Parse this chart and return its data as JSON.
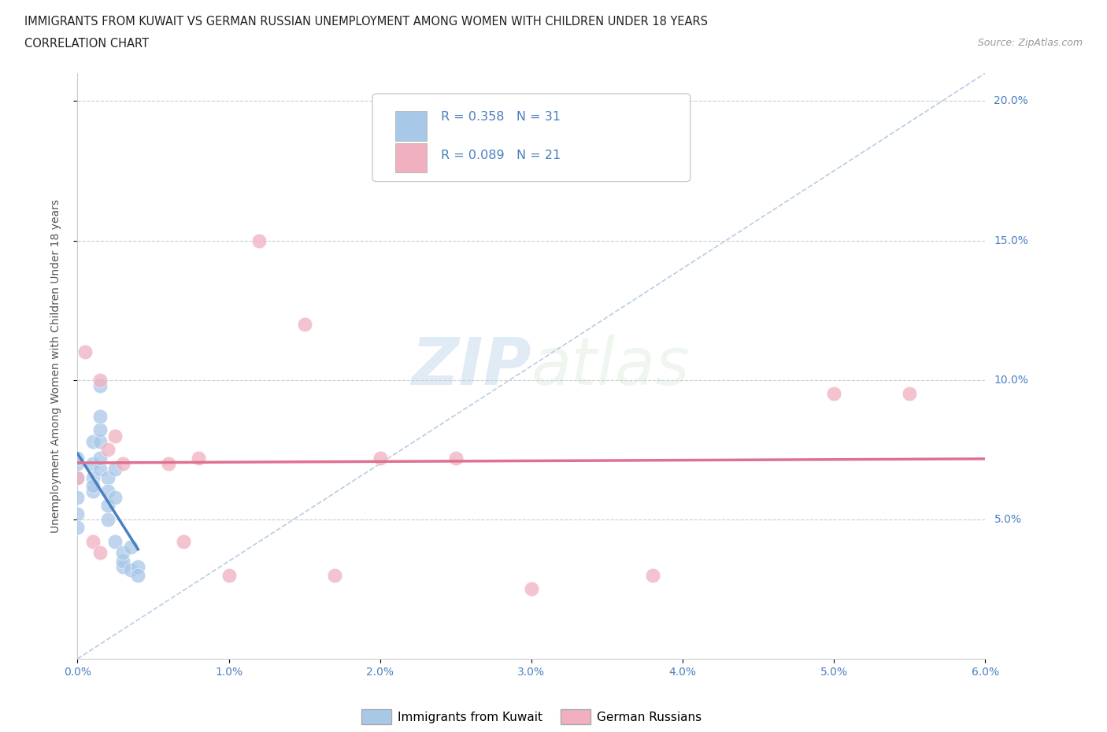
{
  "title_line1": "IMMIGRANTS FROM KUWAIT VS GERMAN RUSSIAN UNEMPLOYMENT AMONG WOMEN WITH CHILDREN UNDER 18 YEARS",
  "title_line2": "CORRELATION CHART",
  "source": "Source: ZipAtlas.com",
  "ylabel_label": "Unemployment Among Women with Children Under 18 years",
  "xlim": [
    0.0,
    0.06
  ],
  "ylim": [
    0.0,
    0.21
  ],
  "xticks": [
    0.0,
    0.01,
    0.02,
    0.03,
    0.04,
    0.05,
    0.06
  ],
  "yticks": [
    0.05,
    0.1,
    0.15,
    0.2
  ],
  "ytick_labels": [
    "5.0%",
    "10.0%",
    "15.0%",
    "20.0%"
  ],
  "xtick_labels": [
    "0.0%",
    "1.0%",
    "2.0%",
    "3.0%",
    "4.0%",
    "5.0%",
    "6.0%"
  ],
  "blue_color": "#a8c8e8",
  "pink_color": "#f0b0c0",
  "blue_line_color": "#4a7fc0",
  "pink_line_color": "#e07090",
  "ref_line_color": "#b0c8e0",
  "tick_color": "#4a7fc0",
  "R_blue": 0.358,
  "N_blue": 31,
  "R_pink": 0.089,
  "N_pink": 21,
  "legend_label_blue": "Immigrants from Kuwait",
  "legend_label_pink": "German Russians",
  "watermark_zip": "ZIP",
  "watermark_atlas": "atlas",
  "blue_scatter_x": [
    0.0,
    0.0,
    0.0,
    0.0,
    0.0,
    0.0,
    0.001,
    0.001,
    0.001,
    0.001,
    0.001,
    0.0015,
    0.0015,
    0.0015,
    0.0015,
    0.0015,
    0.0015,
    0.002,
    0.002,
    0.002,
    0.002,
    0.0025,
    0.0025,
    0.0025,
    0.003,
    0.003,
    0.003,
    0.0035,
    0.0035,
    0.004,
    0.004
  ],
  "blue_scatter_y": [
    0.065,
    0.07,
    0.072,
    0.058,
    0.052,
    0.047,
    0.06,
    0.065,
    0.07,
    0.078,
    0.062,
    0.068,
    0.072,
    0.078,
    0.082,
    0.087,
    0.098,
    0.065,
    0.06,
    0.055,
    0.05,
    0.068,
    0.058,
    0.042,
    0.033,
    0.035,
    0.038,
    0.04,
    0.032,
    0.033,
    0.03
  ],
  "pink_scatter_x": [
    0.0,
    0.0005,
    0.001,
    0.0015,
    0.0015,
    0.002,
    0.0025,
    0.003,
    0.006,
    0.007,
    0.008,
    0.01,
    0.012,
    0.015,
    0.017,
    0.02,
    0.025,
    0.03,
    0.038,
    0.05,
    0.055
  ],
  "pink_scatter_y": [
    0.065,
    0.11,
    0.042,
    0.1,
    0.038,
    0.075,
    0.08,
    0.07,
    0.07,
    0.042,
    0.072,
    0.03,
    0.15,
    0.12,
    0.03,
    0.072,
    0.072,
    0.025,
    0.03,
    0.095,
    0.095
  ]
}
